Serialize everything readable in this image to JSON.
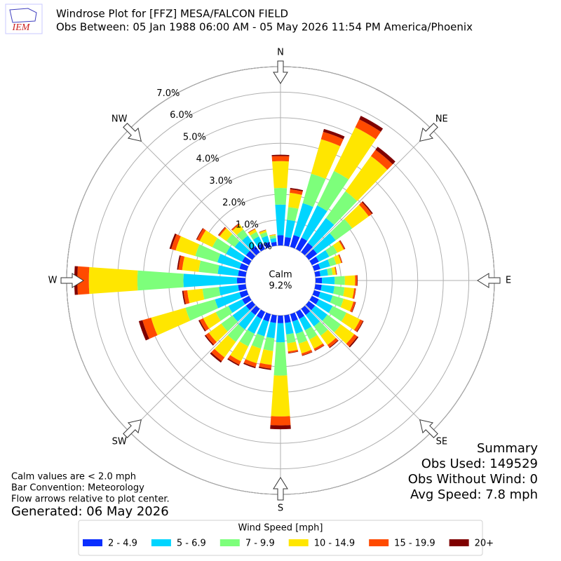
{
  "chart_data": {
    "type": "windrose",
    "logo": "IEM",
    "title": "Windrose Plot for [FFZ] MESA/FALCON FIELD",
    "subtitle": "Obs Between: 05 Jan 1988 06:00 AM - 05 May 2026 11:54 PM America/Phoenix",
    "compass": [
      "N",
      "NE",
      "E",
      "SE",
      "S",
      "SW",
      "W",
      "NW"
    ],
    "calm_label": "Calm",
    "calm_value": "9.2%",
    "ylim": [
      0,
      7
    ],
    "yticks": [
      {
        "value": 0,
        "label": "0.0%"
      },
      {
        "value": 1,
        "label": "1.0%"
      },
      {
        "value": 2,
        "label": "2.0%"
      },
      {
        "value": 3,
        "label": "3.0%"
      },
      {
        "value": 4,
        "label": "4.0%"
      },
      {
        "value": 5,
        "label": "5.0%"
      },
      {
        "value": 6,
        "label": "6.0%"
      },
      {
        "value": 7,
        "label": "7.0%"
      }
    ],
    "grid": true,
    "categories": [
      null,
      null,
      null,
      null,
      null,
      null,
      null,
      null,
      null,
      null,
      null,
      null,
      null,
      null,
      null,
      null,
      null,
      null,
      null,
      null,
      null,
      null,
      null,
      null,
      null,
      null,
      null,
      null,
      null,
      null,
      null,
      null,
      null,
      null,
      null,
      null
    ],
    "series": [
      {
        "name": "2 - 4.9",
        "color": "#0a2eff",
        "values": [
          0.4,
          0.34,
          0.48,
          0.5,
          0.45,
          0.4,
          0.3,
          0.25,
          0.2,
          0.25,
          0.25,
          0.25,
          0.3,
          0.3,
          0.3,
          0.3,
          0.3,
          0.3,
          0.3,
          0.3,
          0.3,
          0.3,
          0.3,
          0.3,
          0.3,
          0.3,
          0.3,
          0.33,
          0.3,
          0.3,
          0.3,
          0.3,
          0.3,
          0.25,
          0.2,
          0.15
        ]
      },
      {
        "name": "5 - 6.9",
        "color": "#00d5ff",
        "values": [
          1.2,
          0.68,
          1.3,
          1.4,
          1.2,
          0.9,
          0.45,
          0.4,
          0.3,
          0.5,
          0.5,
          0.5,
          0.6,
          0.6,
          0.55,
          0.5,
          0.5,
          0.45,
          0.75,
          0.6,
          0.6,
          0.65,
          0.7,
          0.65,
          0.6,
          1.0,
          0.75,
          2.1,
          0.8,
          0.9,
          0.7,
          0.55,
          0.5,
          0.3,
          0.25,
          0.15
        ]
      },
      {
        "name": "7 - 9.9",
        "color": "#7dff7b",
        "values": [
          0.65,
          0.5,
          1.2,
          1.5,
          1.3,
          0.8,
          0.35,
          0.25,
          0.18,
          0.4,
          0.4,
          0.45,
          0.6,
          0.65,
          0.45,
          0.4,
          0.4,
          0.35,
          1.3,
          0.5,
          0.5,
          0.55,
          0.6,
          0.55,
          0.55,
          1.2,
          0.65,
          1.8,
          0.75,
          0.9,
          0.6,
          0.4,
          0.3,
          0.2,
          0.15,
          0.1
        ]
      },
      {
        "name": "10 - 14.9",
        "color": "#ffe600",
        "values": [
          1.05,
          0.56,
          1.4,
          1.9,
          1.7,
          0.8,
          0.28,
          0.2,
          0.13,
          0.4,
          0.38,
          0.4,
          0.6,
          0.65,
          0.45,
          0.4,
          0.4,
          0.32,
          1.6,
          0.55,
          0.6,
          0.65,
          0.75,
          0.6,
          0.55,
          1.4,
          0.6,
          1.9,
          0.65,
          0.8,
          0.55,
          0.32,
          0.24,
          0.12,
          0.08,
          0.04
        ]
      },
      {
        "name": "15 - 19.9",
        "color": "#ff4a00",
        "values": [
          0.2,
          0.14,
          0.3,
          0.35,
          0.3,
          0.15,
          0.05,
          0.04,
          0.03,
          0.08,
          0.06,
          0.08,
          0.12,
          0.15,
          0.12,
          0.08,
          0.08,
          0.06,
          0.35,
          0.15,
          0.15,
          0.15,
          0.18,
          0.15,
          0.15,
          0.35,
          0.15,
          0.45,
          0.15,
          0.18,
          0.12,
          0.06,
          0.05,
          0.02,
          0.01,
          0.01
        ]
      },
      {
        "name": "20+",
        "color": "#7f0000",
        "values": [
          0.05,
          0.05,
          0.12,
          0.15,
          0.15,
          0.05,
          0.02,
          0.01,
          0.01,
          0.02,
          0.01,
          0.02,
          0.03,
          0.05,
          0.03,
          0.02,
          0.02,
          0.02,
          0.15,
          0.05,
          0.05,
          0.05,
          0.07,
          0.05,
          0.05,
          0.15,
          0.05,
          0.12,
          0.05,
          0.07,
          0.03,
          0.02,
          0.01,
          0.01,
          0.01,
          0
        ]
      }
    ],
    "legend_title": "Wind Speed [mph]",
    "notes": [
      "Calm values are < 2.0 mph",
      "Bar Convention: Meteorology",
      "Flow arrows relative to plot center."
    ],
    "generated": "Generated: 06 May 2026",
    "summary": [
      "Summary",
      "Obs Used: 149529",
      "Obs Without Wind: 0",
      "Avg Speed: 7.8 mph"
    ]
  }
}
